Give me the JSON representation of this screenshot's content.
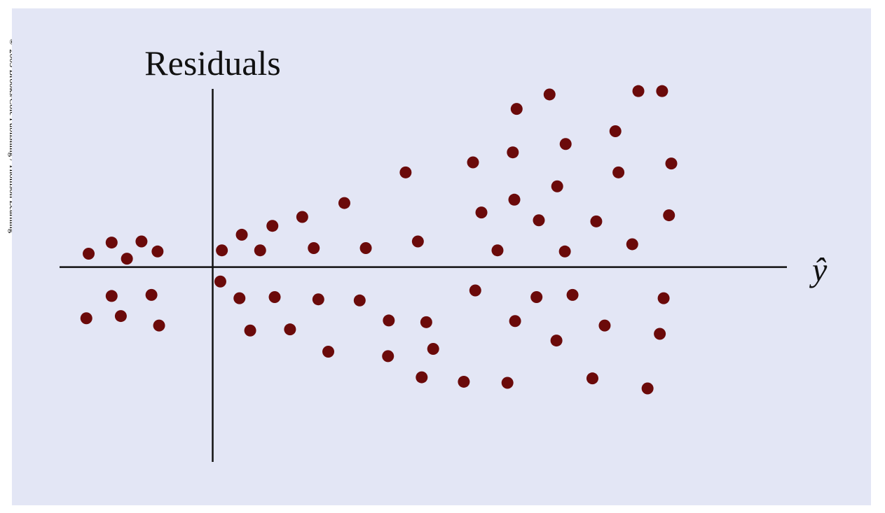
{
  "copyright": "© 2003 Brooks/Cole Publishing / Thomson Learning",
  "chart_data": {
    "type": "scatter",
    "ylabel": "Residuals",
    "xlabel": "ŷ",
    "xlim": [
      -2,
      7.5
    ],
    "ylim": [
      -3.5,
      3.2
    ],
    "grid": false,
    "colors": {
      "point": "#6b0a0a",
      "axis": "#111111",
      "background": "#e3e6f5"
    },
    "points": [
      {
        "x": -1.62,
        "y": 0.24
      },
      {
        "x": -1.32,
        "y": 0.44
      },
      {
        "x": -1.12,
        "y": 0.15
      },
      {
        "x": -0.93,
        "y": 0.46
      },
      {
        "x": -0.72,
        "y": 0.28
      },
      {
        "x": -1.65,
        "y": -0.92
      },
      {
        "x": -1.32,
        "y": -0.52
      },
      {
        "x": -1.2,
        "y": -0.88
      },
      {
        "x": -0.8,
        "y": -0.5
      },
      {
        "x": -0.7,
        "y": -1.05
      },
      {
        "x": 0.12,
        "y": 0.3
      },
      {
        "x": 0.38,
        "y": 0.58
      },
      {
        "x": 0.62,
        "y": 0.3
      },
      {
        "x": 0.78,
        "y": 0.74
      },
      {
        "x": 1.17,
        "y": 0.9
      },
      {
        "x": 1.32,
        "y": 0.34
      },
      {
        "x": 1.72,
        "y": 1.15
      },
      {
        "x": 2.0,
        "y": 0.34
      },
      {
        "x": 2.52,
        "y": 1.7
      },
      {
        "x": 2.68,
        "y": 0.46
      },
      {
        "x": 0.1,
        "y": -0.26
      },
      {
        "x": 0.35,
        "y": -0.56
      },
      {
        "x": 0.49,
        "y": -1.14
      },
      {
        "x": 0.81,
        "y": -0.54
      },
      {
        "x": 1.01,
        "y": -1.12
      },
      {
        "x": 1.38,
        "y": -0.58
      },
      {
        "x": 1.51,
        "y": -1.52
      },
      {
        "x": 1.92,
        "y": -0.6
      },
      {
        "x": 2.3,
        "y": -0.96
      },
      {
        "x": 2.29,
        "y": -1.6
      },
      {
        "x": 2.73,
        "y": -1.98
      },
      {
        "x": 3.4,
        "y": 1.88
      },
      {
        "x": 3.51,
        "y": 0.98
      },
      {
        "x": 3.72,
        "y": 0.3
      },
      {
        "x": 3.92,
        "y": 2.06
      },
      {
        "x": 3.97,
        "y": 2.84
      },
      {
        "x": 3.94,
        "y": 1.21
      },
      {
        "x": 4.26,
        "y": 0.84
      },
      {
        "x": 4.4,
        "y": 3.1
      },
      {
        "x": 4.5,
        "y": 1.45
      },
      {
        "x": 4.61,
        "y": 2.21
      },
      {
        "x": 4.6,
        "y": 0.28
      },
      {
        "x": 5.01,
        "y": 0.82
      },
      {
        "x": 5.26,
        "y": 2.44
      },
      {
        "x": 5.3,
        "y": 1.7
      },
      {
        "x": 5.48,
        "y": 0.41
      },
      {
        "x": 5.56,
        "y": 3.16
      },
      {
        "x": 5.87,
        "y": 3.16
      },
      {
        "x": 5.99,
        "y": 1.86
      },
      {
        "x": 5.96,
        "y": 0.93
      },
      {
        "x": 2.79,
        "y": -0.99
      },
      {
        "x": 2.88,
        "y": -1.47
      },
      {
        "x": 3.28,
        "y": -2.06
      },
      {
        "x": 3.43,
        "y": -0.42
      },
      {
        "x": 3.95,
        "y": -0.97
      },
      {
        "x": 3.85,
        "y": -2.08
      },
      {
        "x": 4.23,
        "y": -0.54
      },
      {
        "x": 4.49,
        "y": -1.32
      },
      {
        "x": 4.7,
        "y": -0.5
      },
      {
        "x": 4.96,
        "y": -2.0
      },
      {
        "x": 5.12,
        "y": -1.05
      },
      {
        "x": 5.68,
        "y": -2.18
      },
      {
        "x": 5.84,
        "y": -1.2
      },
      {
        "x": 5.89,
        "y": -0.56
      }
    ]
  }
}
